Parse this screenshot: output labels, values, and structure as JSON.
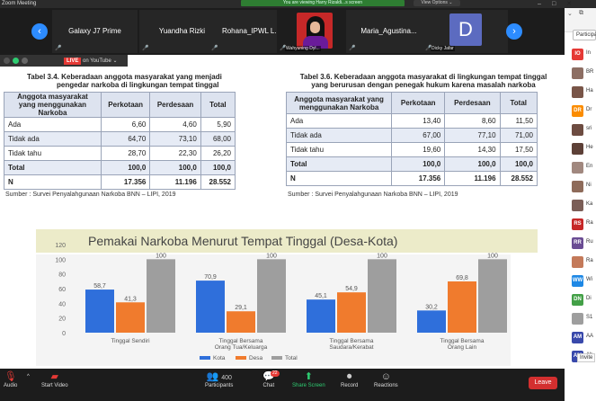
{
  "window": {
    "title": "Zoom Meeting",
    "banner": "You are viewing Harry Rizaldi...s screen",
    "view_options": "View Options ⌄"
  },
  "thumbnails": [
    {
      "name": "Galaxy J7 Prime",
      "label": ""
    },
    {
      "name": "Yuandha Rizki",
      "label": ""
    },
    {
      "name": "Rohana_IPWL L...",
      "label": ""
    },
    {
      "name": "",
      "label": "Wahyuning Dyl..."
    },
    {
      "name": "Maria_Agustina...",
      "label": ""
    },
    {
      "name": "",
      "label": "Dicky Jafar",
      "letter": "D"
    }
  ],
  "share": {
    "live": "LIVE",
    "on_youtube": "on YouTube ⌄"
  },
  "table_left": {
    "caption1": "Tabel 3.4.  Keberadaan anggota masyarakat yang menjadi",
    "caption2": "pengedar narkoba di lingkungan tempat tinggal",
    "headers": [
      "Anggota masyarakat yang menggunakan Narkoba",
      "Perkotaan",
      "Perdesaan",
      "Total"
    ],
    "rows": [
      [
        "Ada",
        "6,60",
        "4,60",
        "5,90"
      ],
      [
        "Tidak ada",
        "64,70",
        "73,10",
        "68,00"
      ],
      [
        "Tidak tahu",
        "28,70",
        "22,30",
        "26,20"
      ],
      [
        "Total",
        "100,0",
        "100,0",
        "100,0"
      ],
      [
        "N",
        "17.356",
        "11.196",
        "28.552"
      ]
    ],
    "source": "Sumber : Survei Penyalahgunaan Narkoba BNN – LIPI, 2019"
  },
  "table_right": {
    "caption1": "Tabel 3.6. Keberadaan anggota masyarakat di lingkungan tempat tinggal",
    "caption2": "yang berurusan dengan penegak hukum karena masalah narkoba",
    "headers": [
      "Anggota masyarakat yang menggunakan Narkoba",
      "Perkotaan",
      "Perdesaan",
      "Total"
    ],
    "rows": [
      [
        "Ada",
        "13,40",
        "8,60",
        "11,50"
      ],
      [
        "Tidak ada",
        "67,00",
        "77,10",
        "71,00"
      ],
      [
        "Tidak tahu",
        "19,60",
        "14,30",
        "17,50"
      ],
      [
        "Total",
        "100,0",
        "100,0",
        "100,0"
      ],
      [
        "N",
        "17.356",
        "11.196",
        "28.552"
      ]
    ],
    "source": "Sumber : Survei Penyalahgunaan Narkoba BNN – LIPI, 2019"
  },
  "chart_data": {
    "type": "bar",
    "title": "Pemakai Narkoba Menurut Tempat Tinggal (Desa-Kota)",
    "categories": [
      "Tinggal Sendiri",
      "Tinggal Bersama Orang Tua/Keluarga",
      "Tinggal Bersama Saudara/Kerabat",
      "Tinggal Bersama Orang Lain"
    ],
    "series": [
      {
        "name": "Kota",
        "color": "#2f6fdb",
        "values": [
          58.7,
          70.9,
          45.1,
          30.2
        ]
      },
      {
        "name": "Desa",
        "color": "#f07b2d",
        "values": [
          41.3,
          29.1,
          54.9,
          69.8
        ]
      },
      {
        "name": "Total",
        "color": "#9e9e9e",
        "values": [
          100,
          100,
          100,
          100
        ]
      }
    ],
    "data_labels": [
      [
        "58,7",
        "70,9",
        "45,1",
        "30,2"
      ],
      [
        "41,3",
        "29,1",
        "54,9",
        "69,8"
      ],
      [
        "100",
        "100",
        "100",
        "100"
      ]
    ],
    "y_ticks": [
      "0",
      "20",
      "40",
      "60",
      "80",
      "100",
      "120"
    ],
    "ylim": [
      0,
      120
    ],
    "legend_position": "bottom",
    "grid": false
  },
  "participants_panel": {
    "title": "Participants",
    "people": [
      {
        "initials": "IO",
        "name": "In",
        "color": "#e53935"
      },
      {
        "initials": "",
        "name": "BR",
        "color": "#8d6e63"
      },
      {
        "initials": "",
        "name": "Ha",
        "color": "#795548"
      },
      {
        "initials": "DR",
        "name": "Dr",
        "color": "#fb8c00"
      },
      {
        "initials": "",
        "name": "sri",
        "color": "#6d4c41"
      },
      {
        "initials": "",
        "name": "He",
        "color": "#5d4037"
      },
      {
        "initials": "",
        "name": "En",
        "color": "#a1887f"
      },
      {
        "initials": "",
        "name": "Ni",
        "color": "#8e6b5a"
      },
      {
        "initials": "",
        "name": "Ka",
        "color": "#7b5e57"
      },
      {
        "initials": "RS",
        "name": "Ra",
        "color": "#c62828"
      },
      {
        "initials": "RR",
        "name": "Ru",
        "color": "#6a4c93"
      },
      {
        "initials": "",
        "name": "Ra",
        "color": "#c47a5a"
      },
      {
        "initials": "WW",
        "name": "Wi",
        "color": "#1e88e5"
      },
      {
        "initials": "DN",
        "name": "Di",
        "color": "#43a047"
      },
      {
        "initials": "",
        "name": "S1",
        "color": "#9e9e9e"
      },
      {
        "initials": "AM",
        "name": "AA",
        "color": "#3949ab"
      },
      {
        "initials": "AM",
        "name": "Ab",
        "color": "#3949ab"
      }
    ],
    "invite": "Invite"
  },
  "toolbar": {
    "audio": "Audio",
    "start_video": "Start Video",
    "participants": "Participants",
    "participants_count": "400",
    "chat": "Chat",
    "chat_badge": "22",
    "share_screen": "Share Screen",
    "record": "Record",
    "reactions": "Reactions",
    "leave": "Leave"
  }
}
